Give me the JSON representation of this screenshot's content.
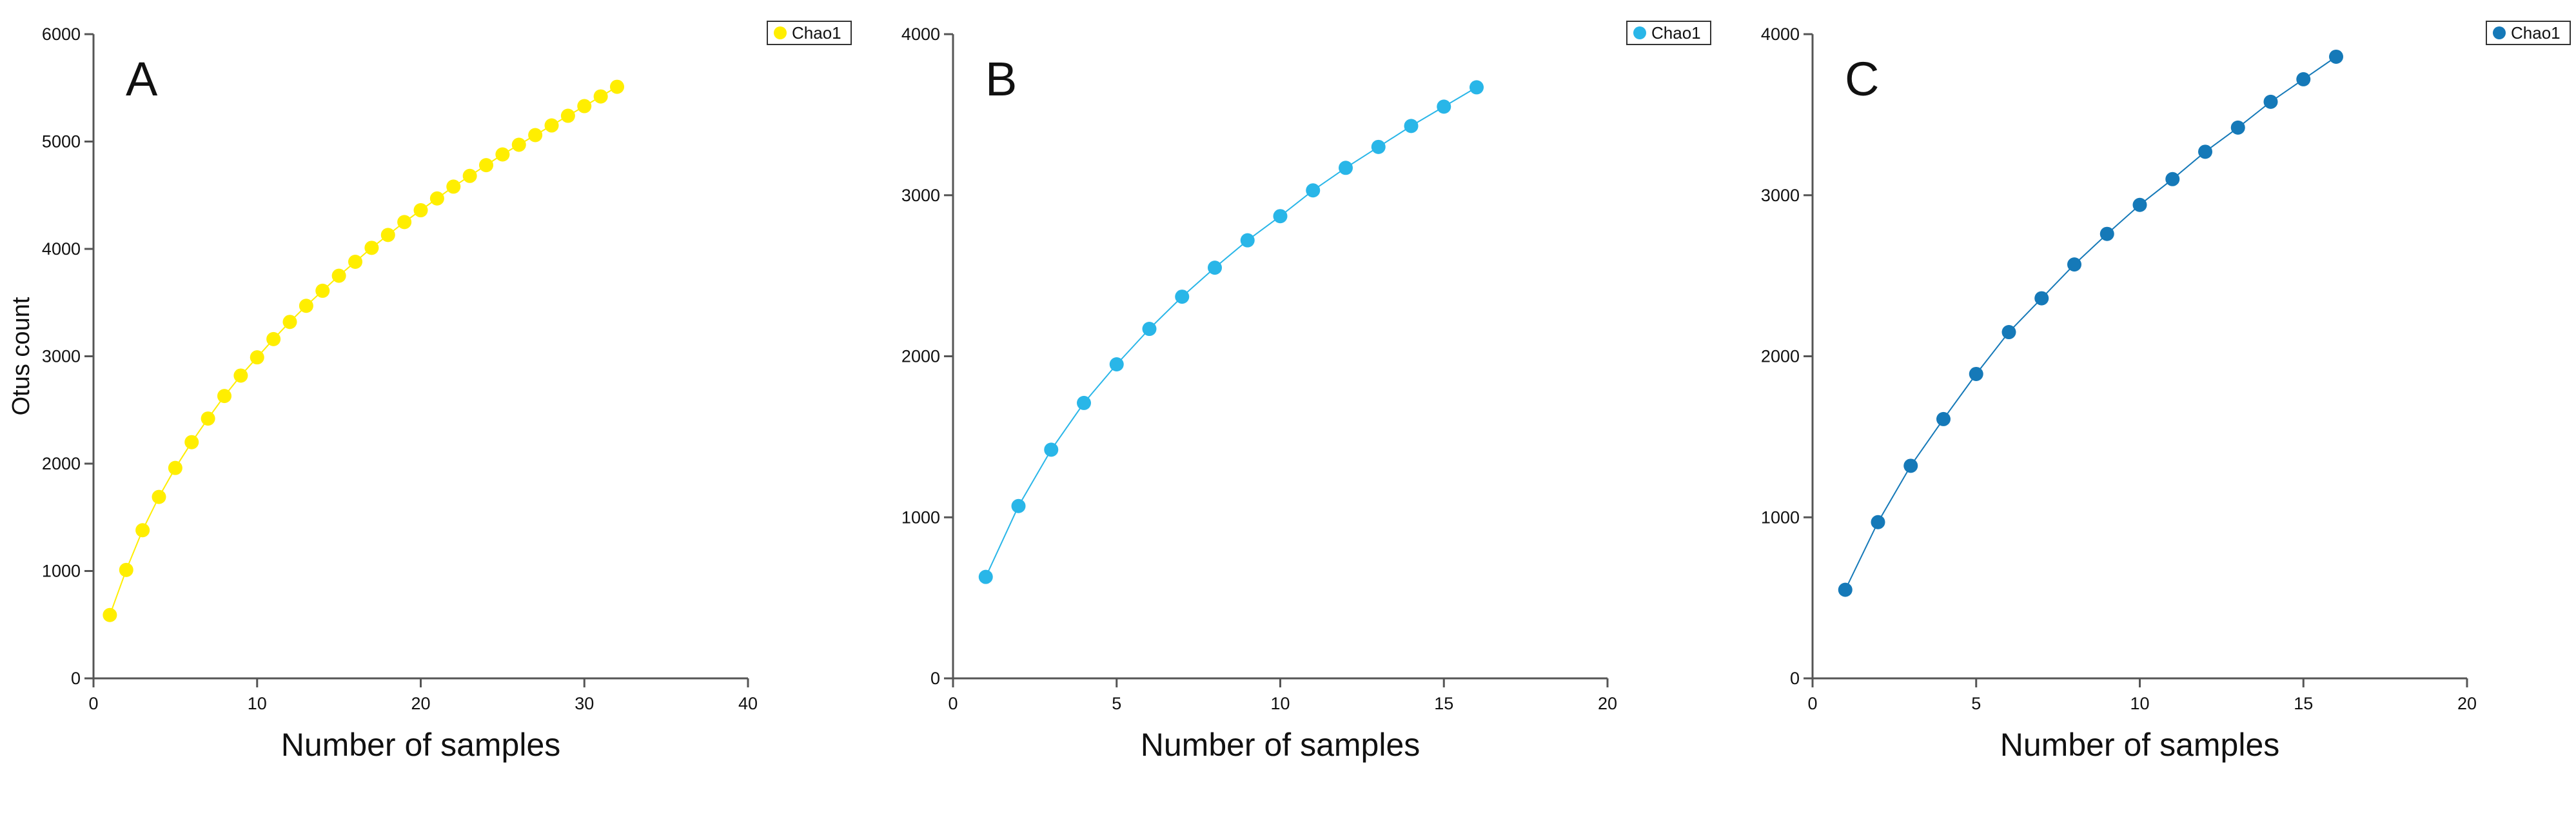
{
  "chart_data": [
    {
      "type": "line",
      "panel_label": "A",
      "title": "",
      "xlabel": "Number of samples",
      "ylabel": "Otus count",
      "xlim": [
        0,
        40
      ],
      "ylim": [
        0,
        6000
      ],
      "x_ticks": [
        0,
        10,
        20,
        30,
        40
      ],
      "y_ticks": [
        0,
        1000,
        2000,
        3000,
        4000,
        5000,
        6000
      ],
      "grid": false,
      "legend_position": "top-right",
      "series": [
        {
          "name": "Chao1",
          "color": "#ffee00",
          "x": [
            1,
            2,
            3,
            4,
            5,
            6,
            7,
            8,
            9,
            10,
            11,
            12,
            13,
            14,
            15,
            16,
            17,
            18,
            19,
            20,
            21,
            22,
            23,
            24,
            25,
            26,
            27,
            28,
            29,
            30,
            31,
            32
          ],
          "y": [
            590,
            1010,
            1380,
            1690,
            1960,
            2200,
            2420,
            2630,
            2820,
            2990,
            3160,
            3320,
            3470,
            3610,
            3750,
            3880,
            4010,
            4130,
            4250,
            4360,
            4470,
            4580,
            4680,
            4780,
            4880,
            4970,
            5060,
            5150,
            5240,
            5330,
            5420,
            5510
          ]
        }
      ]
    },
    {
      "type": "line",
      "panel_label": "B",
      "title": "",
      "xlabel": "Number of samples",
      "ylabel": "",
      "xlim": [
        0,
        20
      ],
      "ylim": [
        0,
        4000
      ],
      "x_ticks": [
        0,
        5,
        10,
        15,
        20
      ],
      "y_ticks": [
        0,
        1000,
        2000,
        3000,
        4000
      ],
      "grid": false,
      "legend_position": "top-right",
      "series": [
        {
          "name": "Chao1",
          "color": "#29b6e8",
          "x": [
            1,
            2,
            3,
            4,
            5,
            6,
            7,
            8,
            9,
            10,
            11,
            12,
            13,
            14,
            15,
            16
          ],
          "y": [
            630,
            1070,
            1420,
            1710,
            1950,
            2170,
            2370,
            2550,
            2720,
            2870,
            3030,
            3170,
            3300,
            3430,
            3550,
            3670
          ]
        }
      ]
    },
    {
      "type": "line",
      "panel_label": "C",
      "title": "",
      "xlabel": "Number of samples",
      "ylabel": "",
      "xlim": [
        0,
        20
      ],
      "ylim": [
        0,
        4000
      ],
      "x_ticks": [
        0,
        5,
        10,
        15,
        20
      ],
      "y_ticks": [
        0,
        1000,
        2000,
        3000,
        4000
      ],
      "grid": false,
      "legend_position": "top-right",
      "series": [
        {
          "name": "Chao1",
          "color": "#1579b8",
          "x": [
            1,
            2,
            3,
            4,
            5,
            6,
            7,
            8,
            9,
            10,
            11,
            12,
            13,
            14,
            15,
            16
          ],
          "y": [
            550,
            970,
            1320,
            1610,
            1890,
            2150,
            2360,
            2570,
            2760,
            2940,
            3100,
            3270,
            3420,
            3580,
            3720,
            3860
          ]
        }
      ]
    }
  ]
}
